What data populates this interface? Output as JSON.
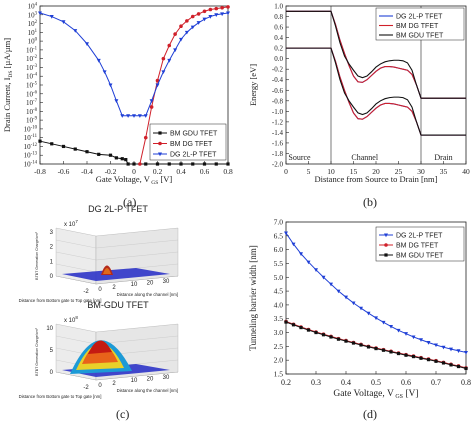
{
  "panels": {
    "a": {
      "caption": "(a)"
    },
    "b": {
      "caption": "(b)"
    },
    "c": {
      "caption": "(c)"
    },
    "d": {
      "caption": "(d)"
    }
  },
  "chart_data": [
    {
      "id": "a",
      "type": "line",
      "xlabel": "Gate Voltage, V",
      "xlabel_sub": "GS",
      "xlabel_unit": "[V]",
      "ylabel": "Drain Current, I",
      "ylabel_sub": "DS",
      "ylabel_unit": "[µA/µm]",
      "xlim": [
        -0.8,
        0.8
      ],
      "ylim_exp": [
        -14,
        4
      ],
      "log_y": true,
      "x_ticks": [
        "-0.8",
        "-0.6",
        "-0.4",
        "-0.2",
        "0",
        "0.2",
        "0.4",
        "0.6",
        "0.8"
      ],
      "x_tick_values": [
        -0.8,
        -0.6,
        -0.4,
        -0.2,
        0,
        0.2,
        0.4,
        0.6,
        0.8
      ],
      "y_tick_exps": [
        4,
        3,
        2,
        1,
        0,
        -1,
        -2,
        -3,
        -4,
        -5,
        -6,
        -7,
        -8,
        -9,
        -10,
        -11,
        -12,
        -13,
        -14
      ],
      "legend_position": "lower-right",
      "series": [
        {
          "name": "BM GDU TFET",
          "color": "#111111",
          "marker": "square",
          "x": [
            -0.8,
            -0.7,
            -0.6,
            -0.5,
            -0.4,
            -0.3,
            -0.2,
            -0.15,
            -0.1,
            -0.07,
            -0.05,
            0,
            0.1,
            0.2,
            0.3,
            0.4,
            0.5,
            0.6,
            0.7,
            0.8
          ],
          "log_y": [
            -11.4,
            -11.7,
            -12.0,
            -12.3,
            -12.6,
            -12.9,
            -13.0,
            -13.3,
            -13.4,
            -13.5,
            -14.0,
            -14.0,
            -14.0,
            -14.0,
            -14.0,
            -14.0,
            -14.0,
            -14.0,
            -14.0,
            -14.0
          ]
        },
        {
          "name": "BM DG TFET",
          "color": "#d0202a",
          "marker": "circle",
          "x": [
            0.05,
            0.1,
            0.15,
            0.2,
            0.25,
            0.3,
            0.35,
            0.4,
            0.45,
            0.5,
            0.55,
            0.6,
            0.65,
            0.7,
            0.75,
            0.8
          ],
          "log_y": [
            -14.0,
            -11.0,
            -7.5,
            -4.5,
            -2.0,
            -0.5,
            0.8,
            1.7,
            2.3,
            2.8,
            3.1,
            3.4,
            3.6,
            3.7,
            3.8,
            3.9
          ]
        },
        {
          "name": "DG 2L-P TFET",
          "color": "#1f3fd6",
          "marker": "triangle",
          "x": [
            -0.8,
            -0.7,
            -0.6,
            -0.5,
            -0.4,
            -0.3,
            -0.25,
            -0.2,
            -0.15,
            -0.1,
            -0.05,
            0,
            0.05,
            0.1,
            0.15,
            0.2,
            0.25,
            0.3,
            0.35,
            0.4,
            0.45,
            0.5,
            0.55,
            0.6,
            0.65,
            0.7,
            0.75,
            0.8
          ],
          "log_y": [
            3.2,
            2.8,
            2.2,
            1.2,
            -0.3,
            -2.2,
            -3.5,
            -5.0,
            -6.8,
            -8.5,
            -8.5,
            -8.5,
            -8.5,
            -8.5,
            -6.8,
            -5.0,
            -3.5,
            -2.2,
            -1.0,
            0.2,
            1.0,
            1.6,
            2.1,
            2.5,
            2.8,
            3.0,
            3.1,
            3.2
          ]
        }
      ]
    },
    {
      "id": "b",
      "type": "line",
      "xlabel": "Distance from Source to Drain [nm]",
      "ylabel": "Energy [eV]",
      "xlim": [
        0,
        40
      ],
      "ylim": [
        -2.0,
        1.0
      ],
      "x_ticks": [
        "0",
        "5",
        "10",
        "15",
        "20",
        "25",
        "30",
        "35",
        "40"
      ],
      "x_tick_values": [
        0,
        5,
        10,
        15,
        20,
        25,
        30,
        35,
        40
      ],
      "y_ticks": [
        "1.0",
        "0.8",
        "0.6",
        "0.4",
        "0.2",
        "0.0",
        "-0.2",
        "-0.4",
        "-0.6",
        "-0.8",
        "-1.0",
        "-1.2",
        "-1.4",
        "-1.6",
        "-1.8",
        "-2.0"
      ],
      "y_tick_values": [
        1.0,
        0.8,
        0.6,
        0.4,
        0.2,
        0.0,
        -0.2,
        -0.4,
        -0.6,
        -0.8,
        -1.0,
        -1.2,
        -1.4,
        -1.6,
        -1.8,
        -2.0
      ],
      "region_labels": [
        "Source",
        "Channel",
        "Drain"
      ],
      "region_label_x": [
        3,
        17.5,
        35
      ],
      "region_dividers": [
        10,
        30
      ],
      "legend_position": "top-right",
      "series": [
        {
          "name": "DG 2L-P TFET",
          "color": "#1f3fd6",
          "x": [
            0,
            10,
            11,
            12,
            13,
            14,
            15,
            16,
            17,
            18,
            19,
            20,
            21,
            22,
            23,
            24,
            25,
            26,
            27,
            28,
            29,
            30,
            40
          ],
          "y": [
            0.9,
            0.9,
            0.65,
            0.35,
            0.1,
            -0.13,
            -0.33,
            -0.44,
            -0.45,
            -0.4,
            -0.32,
            -0.24,
            -0.18,
            -0.15,
            -0.15,
            -0.16,
            -0.18,
            -0.2,
            -0.22,
            -0.3,
            -0.5,
            -0.75,
            -0.75
          ]
        },
        {
          "name": "BM DG TFET",
          "color": "#d0202a",
          "x": [
            0,
            10,
            11,
            12,
            13,
            14,
            15,
            16,
            17,
            18,
            19,
            20,
            21,
            22,
            23,
            24,
            25,
            26,
            27,
            28,
            29,
            30,
            40
          ],
          "y": [
            0.9,
            0.9,
            0.65,
            0.35,
            0.1,
            -0.13,
            -0.33,
            -0.44,
            -0.45,
            -0.4,
            -0.32,
            -0.24,
            -0.18,
            -0.15,
            -0.15,
            -0.16,
            -0.18,
            -0.2,
            -0.22,
            -0.3,
            -0.5,
            -0.75,
            -0.75
          ]
        },
        {
          "name": "BM GDU TFET",
          "color": "#111111",
          "x": [
            0,
            10,
            11,
            12,
            13,
            14,
            15,
            16,
            17,
            18,
            19,
            20,
            21,
            22,
            23,
            24,
            25,
            26,
            27,
            28,
            29,
            30,
            40
          ],
          "y": [
            0.9,
            0.9,
            0.62,
            0.3,
            0.05,
            -0.1,
            -0.22,
            -0.33,
            -0.36,
            -0.33,
            -0.25,
            -0.16,
            -0.1,
            -0.06,
            -0.04,
            -0.03,
            -0.03,
            -0.04,
            -0.08,
            -0.22,
            -0.5,
            -0.75,
            -0.75
          ]
        },
        {
          "name": "DG 2L-P TFET",
          "color": "#1f3fd6",
          "x": [
            0,
            10,
            11,
            12,
            13,
            14,
            15,
            16,
            17,
            18,
            19,
            20,
            21,
            22,
            23,
            24,
            25,
            26,
            27,
            28,
            29,
            30,
            40
          ],
          "y": [
            0.2,
            0.2,
            -0.05,
            -0.35,
            -0.6,
            -0.83,
            -1.03,
            -1.14,
            -1.15,
            -1.1,
            -1.02,
            -0.94,
            -0.88,
            -0.85,
            -0.85,
            -0.86,
            -0.88,
            -0.9,
            -0.92,
            -1.0,
            -1.2,
            -1.45,
            -1.45
          ]
        },
        {
          "name": "BM DG TFET",
          "color": "#d0202a",
          "x": [
            0,
            10,
            11,
            12,
            13,
            14,
            15,
            16,
            17,
            18,
            19,
            20,
            21,
            22,
            23,
            24,
            25,
            26,
            27,
            28,
            29,
            30,
            40
          ],
          "y": [
            0.2,
            0.2,
            -0.05,
            -0.35,
            -0.6,
            -0.83,
            -1.03,
            -1.14,
            -1.15,
            -1.1,
            -1.02,
            -0.94,
            -0.88,
            -0.85,
            -0.85,
            -0.86,
            -0.88,
            -0.9,
            -0.92,
            -1.0,
            -1.2,
            -1.45,
            -1.45
          ]
        },
        {
          "name": "BM GDU TFET",
          "color": "#111111",
          "x": [
            0,
            10,
            11,
            12,
            13,
            14,
            15,
            16,
            17,
            18,
            19,
            20,
            21,
            22,
            23,
            24,
            25,
            26,
            27,
            28,
            29,
            30,
            40
          ],
          "y": [
            0.2,
            0.2,
            -0.08,
            -0.4,
            -0.65,
            -0.8,
            -0.92,
            -1.03,
            -1.06,
            -1.03,
            -0.95,
            -0.86,
            -0.8,
            -0.76,
            -0.74,
            -0.73,
            -0.73,
            -0.74,
            -0.78,
            -0.92,
            -1.2,
            -1.45,
            -1.45
          ]
        }
      ]
    },
    {
      "id": "c",
      "type": "other",
      "plots": [
        {
          "title": "DG 2L-P TFET",
          "zlabel": "BTBT Generation Charge/cm³",
          "scale": "x 10",
          "scale_exp": "7",
          "z_ticks": [
            "3",
            "2",
            "1",
            "0"
          ],
          "x_ticks": [
            "-2",
            "0",
            "2"
          ],
          "xlabel": "Distance from Bottom gate to Top gate [nm]",
          "ylabel": "Distance along the channel [nm]",
          "y_ticks": [
            "10",
            "20",
            "30"
          ],
          "peak_color": "#b52a1a"
        },
        {
          "title": "BM-GDU TFET",
          "zlabel": "BTBT Generation Charge/cm³",
          "scale": "x 10",
          "scale_exp": "8",
          "z_ticks": [
            "10",
            "5",
            "0"
          ],
          "x_ticks": [
            "-2",
            "0",
            "2"
          ],
          "xlabel": "Distance from Bottom gate to Top gate [nm]",
          "ylabel": "Distance along the channel [nm]",
          "y_ticks": [
            "10",
            "20",
            "30"
          ],
          "peak_color": "#c41a12"
        }
      ]
    },
    {
      "id": "d",
      "type": "line",
      "xlabel": "Gate Voltage, V",
      "xlabel_sub": "GS",
      "xlabel_unit": "[V]",
      "ylabel": "Tunneling barrier width [nm]",
      "xlim": [
        0.2,
        0.8
      ],
      "ylim": [
        1.5,
        7.0
      ],
      "x_ticks": [
        "0.2",
        "0.3",
        "0.4",
        "0.5",
        "0.6",
        "0.7",
        "0.8"
      ],
      "x_tick_values": [
        0.2,
        0.3,
        0.4,
        0.5,
        0.6,
        0.7,
        0.8
      ],
      "y_ticks": [
        "7.0",
        "6.5",
        "6.0",
        "5.5",
        "5.0",
        "4.5",
        "4.0",
        "3.5",
        "3.0",
        "2.5",
        "2.0",
        "1.5"
      ],
      "y_tick_values": [
        7.0,
        6.5,
        6.0,
        5.5,
        5.0,
        4.5,
        4.0,
        3.5,
        3.0,
        2.5,
        2.0,
        1.5
      ],
      "legend_position": "top-right",
      "series": [
        {
          "name": "DG 2L-P TFET",
          "color": "#1f3fd6",
          "marker": "triangle",
          "x": [
            0.2,
            0.225,
            0.25,
            0.275,
            0.3,
            0.325,
            0.35,
            0.375,
            0.4,
            0.425,
            0.45,
            0.475,
            0.5,
            0.525,
            0.55,
            0.575,
            0.6,
            0.625,
            0.65,
            0.675,
            0.7,
            0.725,
            0.75,
            0.775,
            0.8
          ],
          "y": [
            6.6,
            6.2,
            5.85,
            5.55,
            5.27,
            5.0,
            4.75,
            4.5,
            4.28,
            4.07,
            3.88,
            3.7,
            3.53,
            3.37,
            3.22,
            3.08,
            2.96,
            2.84,
            2.74,
            2.64,
            2.55,
            2.47,
            2.4,
            2.34,
            2.28
          ]
        },
        {
          "name": "BM DG TFET",
          "color": "#d0202a",
          "marker": "circle",
          "x": [
            0.2,
            0.225,
            0.25,
            0.275,
            0.3,
            0.325,
            0.35,
            0.375,
            0.4,
            0.425,
            0.45,
            0.475,
            0.5,
            0.525,
            0.55,
            0.575,
            0.6,
            0.625,
            0.65,
            0.675,
            0.7,
            0.725,
            0.75,
            0.775,
            0.8
          ],
          "y": [
            3.4,
            3.3,
            3.2,
            3.11,
            3.02,
            2.94,
            2.86,
            2.78,
            2.71,
            2.64,
            2.57,
            2.5,
            2.44,
            2.38,
            2.32,
            2.26,
            2.2,
            2.15,
            2.09,
            2.04,
            1.98,
            1.92,
            1.85,
            1.79,
            1.72
          ]
        },
        {
          "name": "BM GDU TFET",
          "color": "#111111",
          "marker": "square",
          "x": [
            0.2,
            0.225,
            0.25,
            0.275,
            0.3,
            0.325,
            0.35,
            0.375,
            0.4,
            0.425,
            0.45,
            0.475,
            0.5,
            0.525,
            0.55,
            0.575,
            0.6,
            0.625,
            0.65,
            0.675,
            0.7,
            0.725,
            0.75,
            0.775,
            0.8
          ],
          "y": [
            3.38,
            3.28,
            3.18,
            3.09,
            3.0,
            2.92,
            2.84,
            2.76,
            2.69,
            2.62,
            2.55,
            2.48,
            2.42,
            2.36,
            2.3,
            2.24,
            2.18,
            2.13,
            2.07,
            2.02,
            1.96,
            1.9,
            1.83,
            1.77,
            1.7
          ]
        }
      ]
    }
  ]
}
